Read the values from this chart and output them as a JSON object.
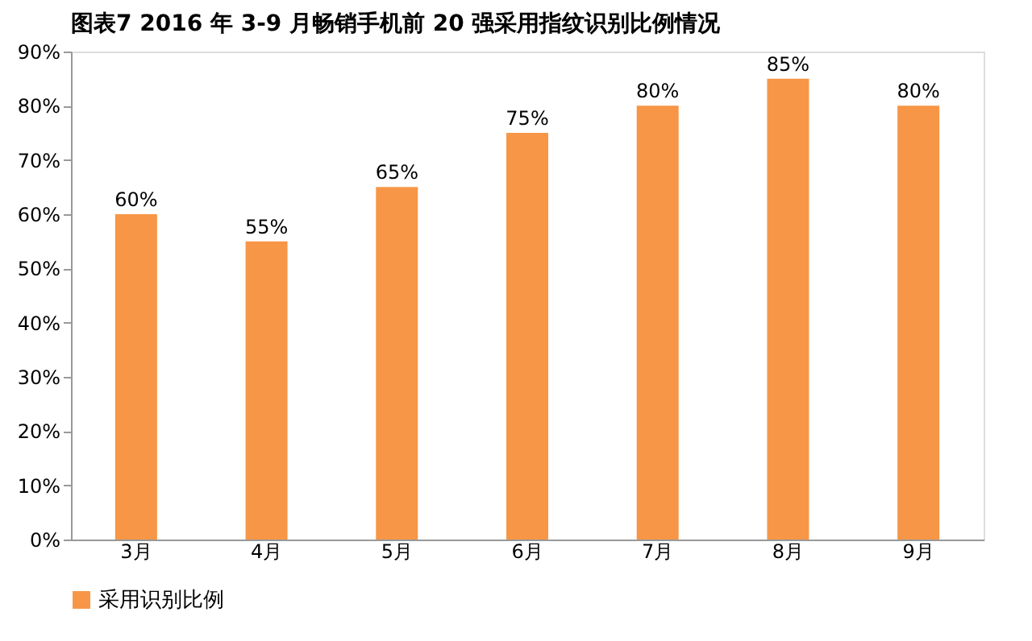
{
  "chart_data": {
    "type": "bar",
    "title": "图表7    2016 年 3-9 月畅销手机前 20 强采用指纹识别比例情况",
    "categories": [
      "3月",
      "4月",
      "5月",
      "6月",
      "7月",
      "8月",
      "9月"
    ],
    "series": [
      {
        "name": "采用识别比例",
        "color": "#f79646",
        "values": [
          60,
          55,
          65,
          75,
          80,
          85,
          80
        ],
        "value_labels": [
          "60%",
          "55%",
          "65%",
          "75%",
          "80%",
          "85%",
          "80%"
        ]
      }
    ],
    "ylim": [
      0,
      90
    ],
    "yticks": [
      {
        "value": 0,
        "label": "0%"
      },
      {
        "value": 10,
        "label": "10%"
      },
      {
        "value": 20,
        "label": "20%"
      },
      {
        "value": 30,
        "label": "30%"
      },
      {
        "value": 40,
        "label": "40%"
      },
      {
        "value": 50,
        "label": "50%"
      },
      {
        "value": 60,
        "label": "60%"
      },
      {
        "value": 70,
        "label": "70%"
      },
      {
        "value": 80,
        "label": "80%"
      },
      {
        "value": 90,
        "label": "90%"
      }
    ],
    "grid": false,
    "legend": "bottom"
  }
}
